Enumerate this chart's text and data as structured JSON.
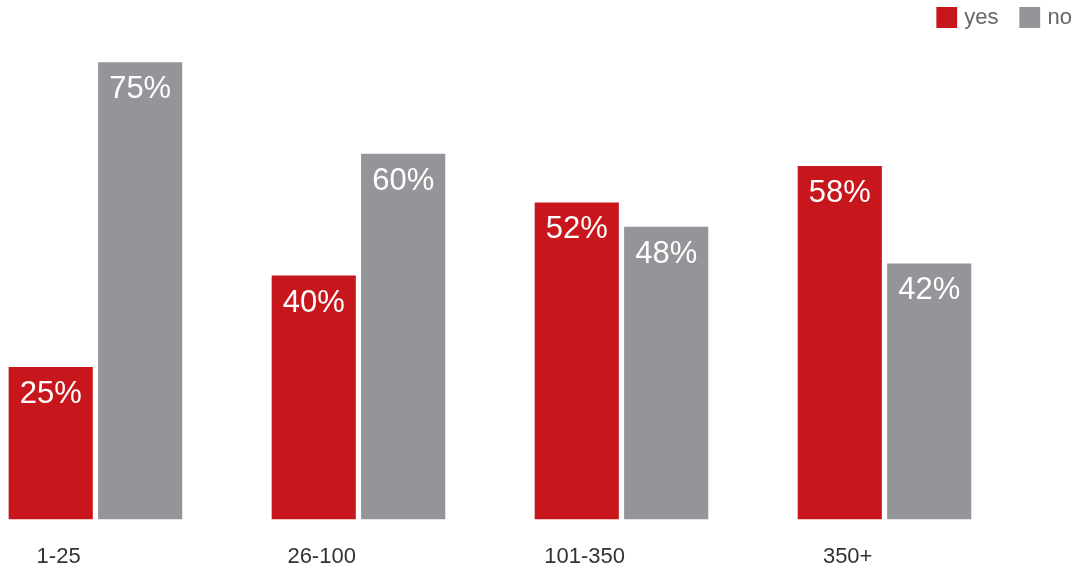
{
  "chart_data": {
    "type": "bar",
    "categories": [
      "1-25",
      "26-100",
      "101-350",
      "350+"
    ],
    "series": [
      {
        "name": "yes",
        "color": "#c8161d",
        "values": [
          25,
          40,
          52,
          58
        ],
        "value_labels": [
          "25%",
          "40%",
          "52%",
          "58%"
        ]
      },
      {
        "name": "no",
        "color": "#939598",
        "values": [
          75,
          60,
          48,
          42
        ],
        "value_labels": [
          "75%",
          "60%",
          "48%",
          "42%"
        ]
      }
    ],
    "legend": "top right",
    "grid": false,
    "tick_labels": "x"
  }
}
